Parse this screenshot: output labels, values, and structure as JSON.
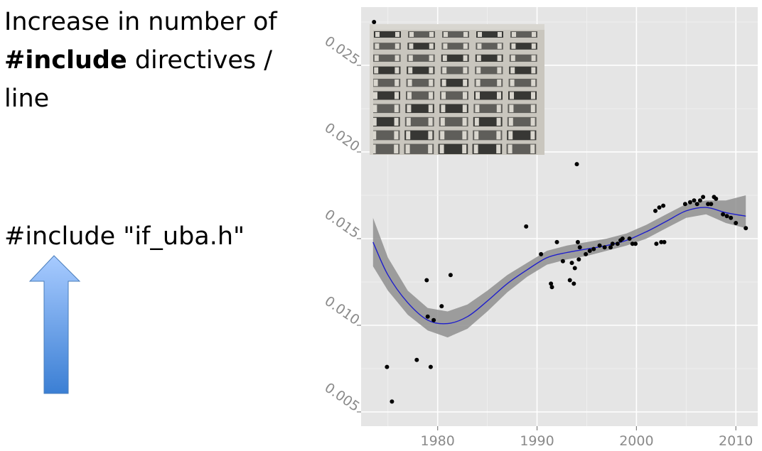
{
  "slide": {
    "title_pre": "Increase in number of",
    "title_bold": "#include",
    "title_post": "directives /",
    "title_end": "line",
    "code_text": "#include \"if_uba.h\""
  },
  "colors": {
    "panel": "#e5e5e5",
    "grid": "#ffffff",
    "points": "#000000",
    "smooth": "#1f1fcc",
    "band": "#8f8f8f",
    "arrow_top": "#a8cbff",
    "arrow_bottom": "#3b7fd4"
  },
  "chart_data": {
    "type": "scatter",
    "xlim": [
      1972.3,
      2012.2
    ],
    "ylim": [
      0.00418,
      0.02836
    ],
    "x_ticks": [
      1980,
      1990,
      2000,
      2010
    ],
    "y_ticks": [
      0.005,
      0.01,
      0.015,
      0.02,
      0.025
    ],
    "x_tick_labels": [
      "1980",
      "1990",
      "2000",
      "2010"
    ],
    "y_tick_labels": [
      "0.005",
      "0.010",
      "0.015",
      "0.020",
      "0.025"
    ],
    "grid": true,
    "points": [
      [
        1973.6,
        0.0275
      ],
      [
        1974.9,
        0.0076
      ],
      [
        1975.4,
        0.0056
      ],
      [
        1977.9,
        0.008
      ],
      [
        1978.9,
        0.0126
      ],
      [
        1979.0,
        0.0105
      ],
      [
        1979.3,
        0.0076
      ],
      [
        1979.6,
        0.0103
      ],
      [
        1980.4,
        0.0111
      ],
      [
        1981.3,
        0.0129
      ],
      [
        1988.9,
        0.0157
      ],
      [
        1990.4,
        0.0141
      ],
      [
        1991.4,
        0.0124
      ],
      [
        1991.5,
        0.0122
      ],
      [
        1992.0,
        0.0148
      ],
      [
        1992.6,
        0.0137
      ],
      [
        1993.3,
        0.0126
      ],
      [
        1993.5,
        0.0136
      ],
      [
        1993.7,
        0.0124
      ],
      [
        1993.8,
        0.0133
      ],
      [
        1994.0,
        0.0193
      ],
      [
        1994.1,
        0.0148
      ],
      [
        1994.2,
        0.0138
      ],
      [
        1994.3,
        0.0145
      ],
      [
        1994.9,
        0.0141
      ],
      [
        1995.3,
        0.0143
      ],
      [
        1995.7,
        0.0144
      ],
      [
        1996.3,
        0.0146
      ],
      [
        1996.8,
        0.0145
      ],
      [
        1997.4,
        0.0145
      ],
      [
        1997.6,
        0.0147
      ],
      [
        1998.1,
        0.0147
      ],
      [
        1998.4,
        0.0149
      ],
      [
        1998.6,
        0.015
      ],
      [
        1999.3,
        0.015
      ],
      [
        1999.6,
        0.0147
      ],
      [
        1999.9,
        0.0147
      ],
      [
        2001.9,
        0.0166
      ],
      [
        2002.0,
        0.0147
      ],
      [
        2002.3,
        0.0168
      ],
      [
        2002.5,
        0.0148
      ],
      [
        2002.7,
        0.0169
      ],
      [
        2002.8,
        0.0148
      ],
      [
        2004.9,
        0.017
      ],
      [
        2005.4,
        0.0171
      ],
      [
        2005.8,
        0.0172
      ],
      [
        2006.1,
        0.017
      ],
      [
        2006.4,
        0.0172
      ],
      [
        2006.7,
        0.0174
      ],
      [
        2007.2,
        0.017
      ],
      [
        2007.5,
        0.017
      ],
      [
        2007.8,
        0.0174
      ],
      [
        2008.0,
        0.0173
      ],
      [
        2008.7,
        0.0164
      ],
      [
        2009.1,
        0.0163
      ],
      [
        2009.5,
        0.0162
      ],
      [
        2010.0,
        0.0159
      ],
      [
        2011.0,
        0.0156
      ]
    ],
    "smooth": {
      "x": [
        1973.5,
        1975.0,
        1977.0,
        1979.0,
        1981.0,
        1983.0,
        1985.0,
        1987.0,
        1989.0,
        1991.0,
        1993.0,
        1995.0,
        1997.0,
        1999.0,
        2001.0,
        2003.0,
        2005.0,
        2007.0,
        2009.0,
        2011.0
      ],
      "y": [
        0.0148,
        0.0129,
        0.0113,
        0.0103,
        0.0101,
        0.0105,
        0.0114,
        0.0124,
        0.0132,
        0.0139,
        0.0142,
        0.0144,
        0.0146,
        0.0149,
        0.0154,
        0.016,
        0.0166,
        0.0168,
        0.0165,
        0.0163
      ],
      "lower": [
        0.0134,
        0.012,
        0.0106,
        0.0097,
        0.0093,
        0.0098,
        0.0108,
        0.0119,
        0.0128,
        0.0135,
        0.0138,
        0.014,
        0.0143,
        0.0146,
        0.015,
        0.0156,
        0.0162,
        0.0164,
        0.0159,
        0.0156
      ],
      "upper": [
        0.0162,
        0.0139,
        0.012,
        0.011,
        0.0108,
        0.0112,
        0.012,
        0.0129,
        0.0136,
        0.0143,
        0.0146,
        0.0148,
        0.015,
        0.0153,
        0.0158,
        0.0164,
        0.017,
        0.0172,
        0.0172,
        0.0175
      ]
    }
  },
  "photo": {
    "icon": "building-facade-photo"
  }
}
